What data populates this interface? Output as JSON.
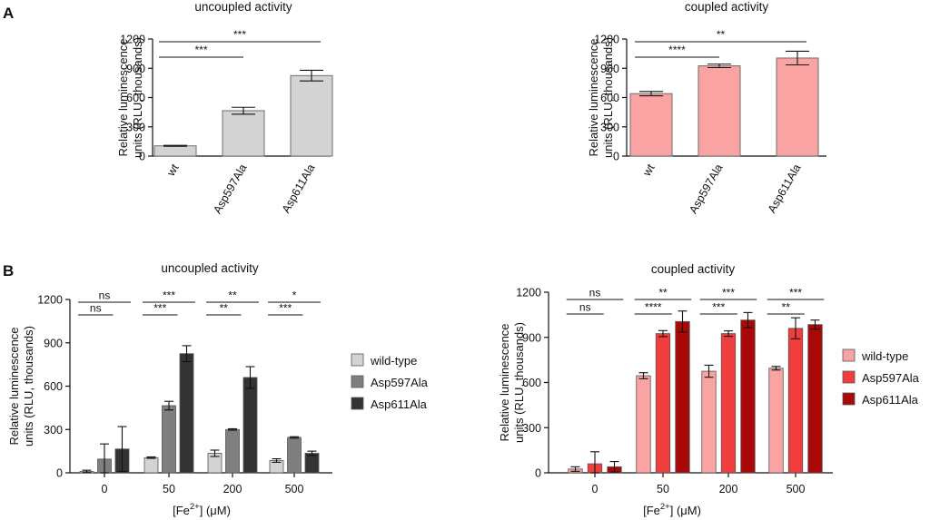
{
  "panels": {
    "a": "A",
    "b": "B"
  },
  "chart_data": [
    {
      "id": "a_uncoupled",
      "type": "bar",
      "title": "uncoupled activity",
      "ylabel": [
        "Relative luminescence",
        "units (RLU, thousands)"
      ],
      "ylim": [
        0,
        1200
      ],
      "yticks": [
        0,
        300,
        600,
        900,
        1200
      ],
      "categories": [
        "wt",
        "Asp597Ala",
        "Asp611Ala"
      ],
      "values": [
        105,
        465,
        825
      ],
      "errors": [
        5,
        35,
        55
      ],
      "color": "#d3d3d3",
      "significance": [
        {
          "from": 0,
          "to": 1,
          "label": "***"
        },
        {
          "from": 0,
          "to": 2,
          "label": "***"
        }
      ]
    },
    {
      "id": "a_coupled",
      "type": "bar",
      "title": "coupled activity",
      "ylabel": [
        "Relative luminescence",
        "units (RLU, thousands)"
      ],
      "ylim": [
        0,
        1200
      ],
      "yticks": [
        0,
        300,
        600,
        900,
        1200
      ],
      "categories": [
        "wt",
        "Asp597Ala",
        "Asp611Ala"
      ],
      "values": [
        640,
        925,
        1005
      ],
      "errors": [
        22,
        18,
        70
      ],
      "color": "#f9a3a3",
      "significance": [
        {
          "from": 0,
          "to": 1,
          "label": "****"
        },
        {
          "from": 0,
          "to": 2,
          "label": "**"
        }
      ]
    },
    {
      "id": "b_uncoupled",
      "type": "bar",
      "title": "uncoupled activity",
      "ylabel": [
        "Relative luminescence",
        "units (RLU, thousands)"
      ],
      "xlabel_parts": [
        "[Fe",
        "2+",
        "] (μM)"
      ],
      "ylim": [
        0,
        1200
      ],
      "yticks": [
        0,
        300,
        600,
        900,
        1200
      ],
      "categories": [
        "0",
        "50",
        "200",
        "500"
      ],
      "series": [
        {
          "name": "wild-type",
          "color": "#d3d3d3",
          "values": [
            10,
            105,
            135,
            85
          ],
          "errors": [
            8,
            5,
            22,
            12
          ]
        },
        {
          "name": "Asp597Ala",
          "color": "#7f7f7f",
          "values": [
            95,
            465,
            300,
            245
          ],
          "errors": [
            105,
            30,
            5,
            5
          ]
        },
        {
          "name": "Asp611Ala",
          "color": "#333333",
          "values": [
            165,
            825,
            660,
            135
          ],
          "errors": [
            155,
            55,
            75,
            15
          ]
        }
      ],
      "significance": [
        {
          "group": 0,
          "from": 0,
          "to": 2,
          "label": "ns",
          "level": 1
        },
        {
          "group": 0,
          "from": 0,
          "to": 1,
          "label": "ns",
          "level": 0
        },
        {
          "group": 1,
          "from": 0,
          "to": 2,
          "label": "***",
          "level": 1
        },
        {
          "group": 1,
          "from": 0,
          "to": 1,
          "label": "***",
          "level": 0
        },
        {
          "group": 2,
          "from": 0,
          "to": 2,
          "label": "**",
          "level": 1
        },
        {
          "group": 2,
          "from": 0,
          "to": 1,
          "label": "**",
          "level": 0
        },
        {
          "group": 3,
          "from": 0,
          "to": 2,
          "label": "*",
          "level": 1
        },
        {
          "group": 3,
          "from": 0,
          "to": 1,
          "label": "***",
          "level": 0
        }
      ]
    },
    {
      "id": "b_coupled",
      "type": "bar",
      "title": "coupled activity",
      "ylabel": [
        "Relative luminescence",
        "units (RLU, thousands)"
      ],
      "xlabel_parts": [
        "[Fe",
        "2+",
        "] (μM)"
      ],
      "ylim": [
        0,
        1200
      ],
      "yticks": [
        0,
        300,
        600,
        900,
        1200
      ],
      "categories": [
        "0",
        "50",
        "200",
        "500"
      ],
      "series": [
        {
          "name": "wild-type",
          "color": "#f9a3a3",
          "values": [
            25,
            645,
            675,
            695
          ],
          "errors": [
            15,
            20,
            40,
            12
          ]
        },
        {
          "name": "Asp597Ala",
          "color": "#f03e3e",
          "values": [
            60,
            925,
            925,
            960
          ],
          "errors": [
            80,
            20,
            18,
            70
          ]
        },
        {
          "name": "Asp611Ala",
          "color": "#a80808",
          "values": [
            40,
            1005,
            1015,
            985
          ],
          "errors": [
            35,
            70,
            50,
            30
          ]
        }
      ],
      "significance": [
        {
          "group": 0,
          "from": 0,
          "to": 2,
          "label": "ns",
          "level": 1
        },
        {
          "group": 0,
          "from": 0,
          "to": 1,
          "label": "ns",
          "level": 0
        },
        {
          "group": 1,
          "from": 0,
          "to": 2,
          "label": "**",
          "level": 1
        },
        {
          "group": 1,
          "from": 0,
          "to": 1,
          "label": "****",
          "level": 0
        },
        {
          "group": 2,
          "from": 0,
          "to": 2,
          "label": "***",
          "level": 1
        },
        {
          "group": 2,
          "from": 0,
          "to": 1,
          "label": "***",
          "level": 0
        },
        {
          "group": 3,
          "from": 0,
          "to": 2,
          "label": "***",
          "level": 1
        },
        {
          "group": 3,
          "from": 0,
          "to": 1,
          "label": "**",
          "level": 0
        }
      ]
    }
  ]
}
